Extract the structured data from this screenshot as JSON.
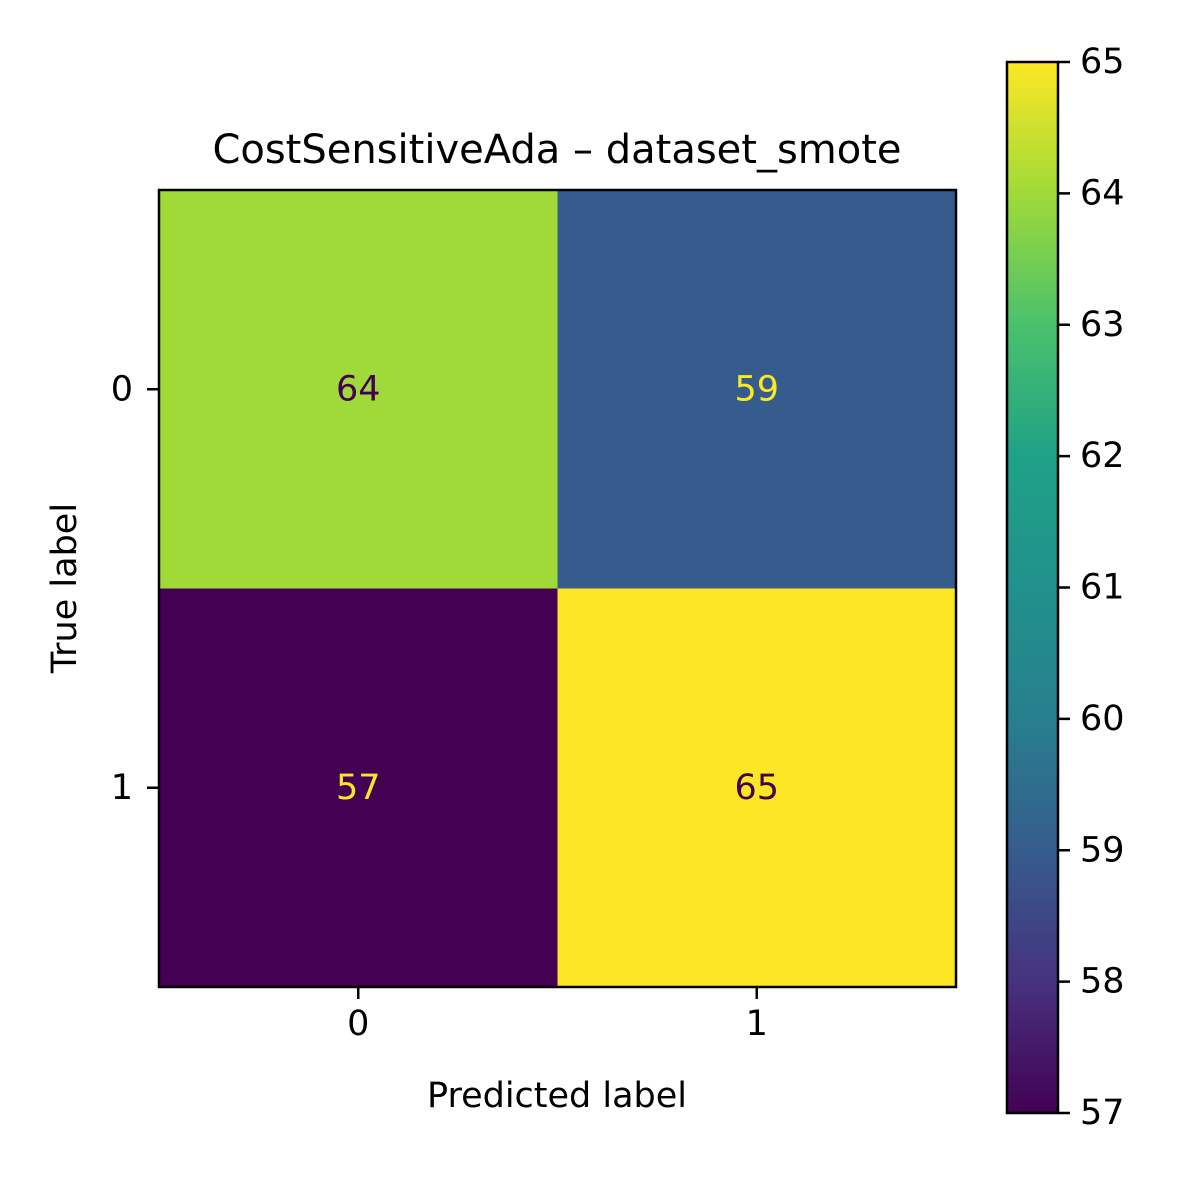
{
  "chart_data": {
    "type": "heatmap",
    "title": "CostSensitiveAda – dataset_smote",
    "xlabel": "Predicted label",
    "ylabel": "True label",
    "x_categories": [
      "0",
      "1"
    ],
    "y_categories": [
      "0",
      "1"
    ],
    "values": [
      [
        64,
        59
      ],
      [
        57,
        65
      ]
    ],
    "colormap": "viridis",
    "colorbar": {
      "min": 57,
      "max": 65,
      "ticks": [
        "57",
        "58",
        "59",
        "60",
        "61",
        "62",
        "63",
        "64",
        "65"
      ]
    },
    "text_colors": {
      "on_light": "#440154",
      "on_dark": "#fde725"
    },
    "grid": false
  }
}
